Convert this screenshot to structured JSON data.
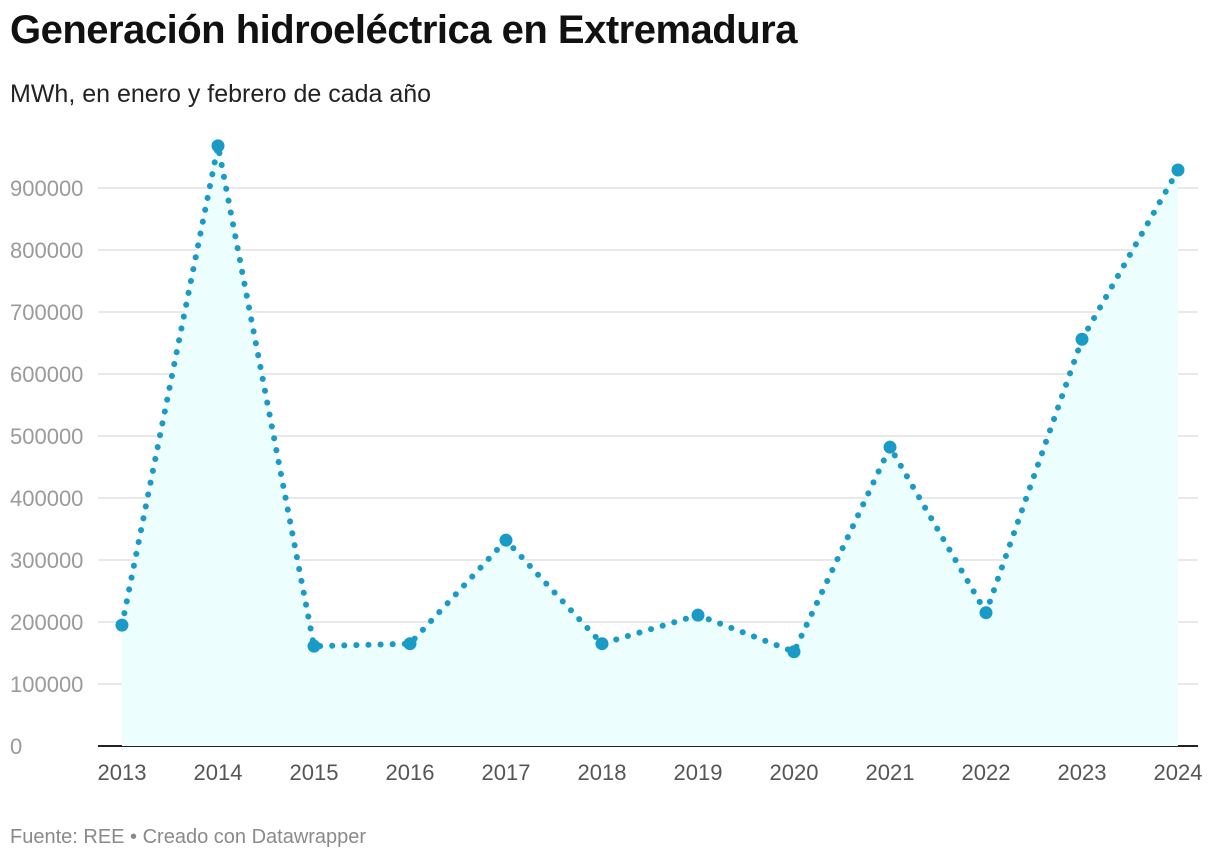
{
  "title": "Generación hidroeléctrica en Extremadura",
  "subtitle": "MWh, en enero y febrero de cada año",
  "source": "Fuente: REE • Creado con Datawrapper",
  "colors": {
    "line": "#1a9bc7",
    "area": "#ecfefe",
    "grid": "#e2e2e2",
    "axis": "#222222"
  },
  "chart_data": {
    "type": "line",
    "title": "Generación hidroeléctrica en Extremadura",
    "subtitle": "MWh, en enero y febrero de cada año",
    "xlabel": "",
    "ylabel": "",
    "x": [
      "2013",
      "2014",
      "2015",
      "2016",
      "2017",
      "2018",
      "2019",
      "2020",
      "2021",
      "2022",
      "2023",
      "2024"
    ],
    "values": [
      195000,
      968000,
      161000,
      165000,
      332000,
      165000,
      211000,
      152000,
      482000,
      215000,
      656000,
      929000
    ],
    "ylim": [
      0,
      900000
    ],
    "yticks": [
      0,
      100000,
      200000,
      300000,
      400000,
      500000,
      600000,
      700000,
      800000,
      900000
    ],
    "line_style": "dotted",
    "area_fill": true,
    "grid": true,
    "legend": "none"
  }
}
